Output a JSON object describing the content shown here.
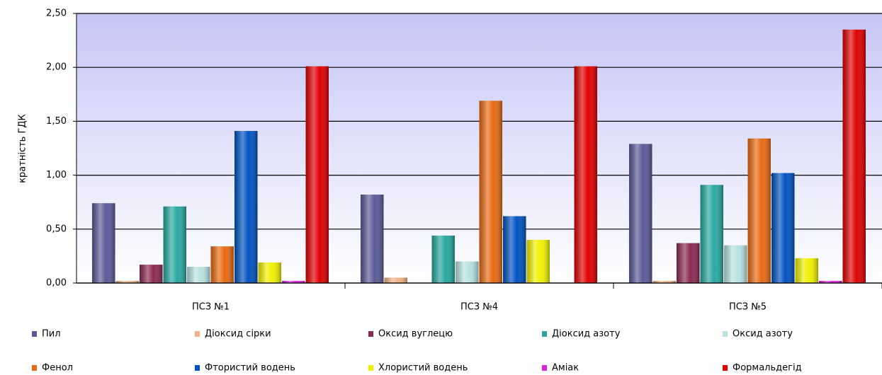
{
  "chart_data": {
    "type": "bar",
    "y_label": "кратність ГДК",
    "categories": [
      "ПСЗ №1",
      "ПСЗ №4",
      "ПСЗ №5"
    ],
    "series": [
      {
        "name": "Пил",
        "color": "#5a5a98",
        "values": [
          0.74,
          0.82,
          1.29
        ]
      },
      {
        "name": "Діоксид сірки",
        "color": "#f2b486",
        "values": [
          0.02,
          0.05,
          0.02
        ]
      },
      {
        "name": "Оксид вуглецю",
        "color": "#8c2a52",
        "values": [
          0.17,
          null,
          0.37
        ]
      },
      {
        "name": "Діоксид азоту",
        "color": "#28a8a0",
        "values": [
          0.71,
          0.44,
          0.91
        ]
      },
      {
        "name": "Оксид азоту",
        "color": "#b8e2e2",
        "values": [
          0.15,
          0.2,
          0.35
        ]
      },
      {
        "name": "Фенол",
        "color": "#e86a12",
        "values": [
          0.34,
          1.69,
          1.34
        ]
      },
      {
        "name": "Фтористий водень",
        "color": "#0052c2",
        "values": [
          1.41,
          0.62,
          1.02
        ]
      },
      {
        "name": "Хлористий водень",
        "color": "#f0f000",
        "values": [
          0.19,
          0.4,
          0.23
        ]
      },
      {
        "name": "Аміак",
        "color": "#e020e0",
        "values": [
          0.02,
          null,
          0.02
        ]
      },
      {
        "name": "Формальдегід",
        "color": "#e00000",
        "values": [
          2.01,
          2.01,
          2.35
        ]
      }
    ],
    "ylim": [
      0,
      2.5
    ],
    "yticks": [
      {
        "value": 0,
        "label": "0,00"
      },
      {
        "value": 0.5,
        "label": "0,50"
      },
      {
        "value": 1,
        "label": "1,00"
      },
      {
        "value": 1.5,
        "label": "1,50"
      },
      {
        "value": 2,
        "label": "2,00"
      },
      {
        "value": 2.5,
        "label": "2,50"
      }
    ],
    "grid": true
  }
}
